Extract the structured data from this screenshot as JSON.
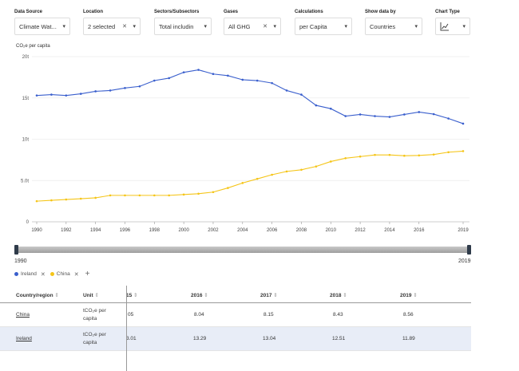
{
  "filters": [
    {
      "label": "Data Source",
      "value": "Climate Wat...",
      "clear": false
    },
    {
      "label": "Location",
      "value": "2 selected",
      "clear": true
    },
    {
      "label": "Sectors/Subsectors",
      "value": "Total includin",
      "clear": false
    },
    {
      "label": "Gases",
      "value": "All GHG",
      "clear": true
    },
    {
      "label": "Calculations",
      "value": "per Capita",
      "clear": false
    },
    {
      "label": "Show data by",
      "value": "Countries",
      "clear": false
    },
    {
      "label": "Chart Type",
      "value": "line-chart-icon",
      "clear": false
    }
  ],
  "slider": {
    "start_label": "1990",
    "end_label": "2019"
  },
  "legend": {
    "items": [
      {
        "name": "Ireland",
        "color": "#3a5fcd"
      },
      {
        "name": "China",
        "color": "#f5c518"
      }
    ],
    "add_label": "+"
  },
  "table": {
    "headers": {
      "country": "Country/region",
      "unit": "Unit",
      "c2015": "15",
      "c2016": "2016",
      "c2017": "2017",
      "c2018": "2018",
      "c2019": "2019",
      "sort": "⇕"
    },
    "rows": [
      {
        "country": "China",
        "unit": "tCO₂e per capita",
        "v2015": "05",
        "v2016": "8.04",
        "v2017": "8.15",
        "v2018": "8.43",
        "v2019": "8.56"
      },
      {
        "country": "Ireland",
        "unit": "tCO₂e per capita",
        "v2015": "3.01",
        "v2016": "13.29",
        "v2017": "13.04",
        "v2018": "12.51",
        "v2019": "11.89"
      }
    ]
  },
  "chart_data": {
    "type": "line",
    "ylabel": "CO₂e per capita",
    "x": [
      1990,
      1991,
      1992,
      1993,
      1994,
      1995,
      1996,
      1997,
      1998,
      1999,
      2000,
      2001,
      2002,
      2003,
      2004,
      2005,
      2006,
      2007,
      2008,
      2009,
      2010,
      2011,
      2012,
      2013,
      2014,
      2015,
      2016,
      2017,
      2018,
      2019
    ],
    "xticks": [
      1990,
      1992,
      1994,
      1996,
      1998,
      2000,
      2002,
      2004,
      2006,
      2008,
      2010,
      2012,
      2014,
      2016,
      2019
    ],
    "yticks": [
      {
        "v": 0,
        "label": "0"
      },
      {
        "v": 5,
        "label": "5.0t"
      },
      {
        "v": 10,
        "label": "10t"
      },
      {
        "v": 15,
        "label": "15t"
      },
      {
        "v": 20,
        "label": "20t"
      }
    ],
    "ylim": [
      0,
      20
    ],
    "series": [
      {
        "name": "Ireland",
        "color": "#3a5fcd",
        "values": [
          15.3,
          15.4,
          15.3,
          15.5,
          15.8,
          15.9,
          16.2,
          16.4,
          17.1,
          17.4,
          18.1,
          18.4,
          17.9,
          17.7,
          17.2,
          17.1,
          16.8,
          15.9,
          15.4,
          14.1,
          13.7,
          12.8,
          13.0,
          12.8,
          12.7,
          13.0,
          13.29,
          13.04,
          12.51,
          11.89
        ]
      },
      {
        "name": "China",
        "color": "#f5c518",
        "values": [
          2.5,
          2.6,
          2.7,
          2.8,
          2.9,
          3.2,
          3.2,
          3.2,
          3.2,
          3.2,
          3.3,
          3.4,
          3.6,
          4.1,
          4.7,
          5.2,
          5.7,
          6.1,
          6.3,
          6.7,
          7.3,
          7.7,
          7.9,
          8.1,
          8.1,
          8.0,
          8.04,
          8.15,
          8.43,
          8.56
        ]
      }
    ]
  }
}
